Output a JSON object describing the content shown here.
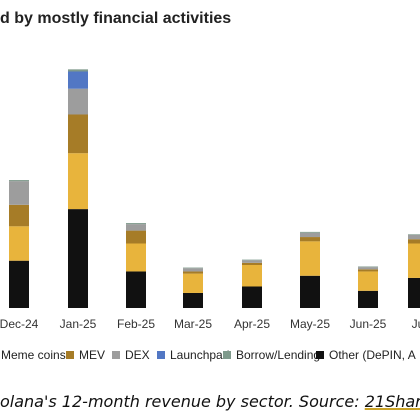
{
  "title_text": "d by mostly financial activities",
  "caption": {
    "prefix": "olana's 12-month revenue by sector. Source: ",
    "source": "21Shares"
  },
  "chart_data": {
    "type": "bar",
    "stacked": true,
    "title": "d by mostly financial activities",
    "categories": [
      "Dec-24",
      "Jan-25",
      "Feb-25",
      "Mar-25",
      "Apr-25",
      "May-25",
      "Jun-25",
      "Ju"
    ],
    "ylim": [
      0,
      120
    ],
    "grid": false,
    "legend_position": "bottom",
    "series": [
      {
        "name": "Other (DePIN, A",
        "color": "#111111",
        "values": [
          22,
          46,
          17,
          7,
          10,
          15,
          8,
          14
        ]
      },
      {
        "name": "Meme coins",
        "color": "#e8b43c",
        "values": [
          16,
          26,
          13,
          9,
          10,
          16,
          9,
          16
        ]
      },
      {
        "name": "MEV",
        "color": "#a67c27",
        "values": [
          10,
          18,
          6,
          1,
          1,
          2,
          1,
          2
        ]
      },
      {
        "name": "DEX",
        "color": "#9d9d9d",
        "values": [
          11,
          12,
          3,
          1.5,
          1.2,
          2,
          1,
          2
        ]
      },
      {
        "name": "Launchpad",
        "color": "#5277c4",
        "values": [
          0,
          8,
          0,
          0,
          0,
          0,
          0,
          0
        ]
      },
      {
        "name": "Borrow/Lending",
        "color": "#7f9a8c",
        "values": [
          0.5,
          1,
          0.5,
          0.3,
          0.3,
          0.4,
          0.3,
          0.3
        ]
      }
    ],
    "legend_order": [
      "Meme coins",
      "MEV",
      "DEX",
      "Launchpad",
      "Borrow/Lending",
      "Other (DePIN, A"
    ]
  }
}
